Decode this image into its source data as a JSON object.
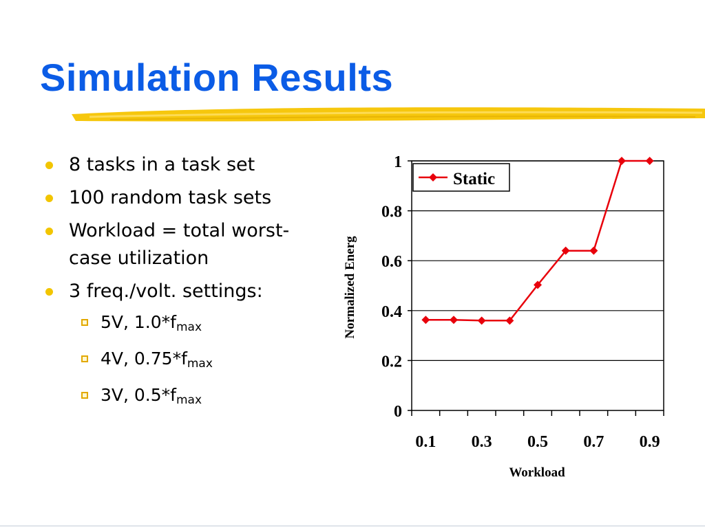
{
  "slide": {
    "title": "Simulation Results",
    "bullets": [
      {
        "text": "8 tasks in a task set"
      },
      {
        "text": "100 random task sets"
      },
      {
        "text": "Workload = total worst-case utilization",
        "line1": "Workload = total worst-",
        "line2": "case utilization"
      },
      {
        "text": "3 freq./volt. settings:"
      }
    ],
    "sub_bullets": [
      {
        "main": "5V, 1.0*f",
        "subscript": "max"
      },
      {
        "main": "4V, 0.75*f",
        "subscript": "max"
      },
      {
        "main": "3V, 0.5*f",
        "subscript": "max"
      }
    ],
    "colors": {
      "title": "#0b5ce6",
      "bullet": "#f2c500",
      "underline": "#f5c400",
      "series": "#e8000b"
    }
  },
  "chart_data": {
    "type": "line",
    "xlabel": "Workload",
    "ylabel": "Normalized Energ",
    "x_ticks": [
      "0.1",
      "0.3",
      "0.5",
      "0.7",
      "0.9"
    ],
    "y_ticks": [
      "0",
      "0.2",
      "0.4",
      "0.6",
      "0.8",
      "1"
    ],
    "ylim": [
      0,
      1
    ],
    "grid": "horizontal",
    "legend": "top-left",
    "series": [
      {
        "name": "Static",
        "color": "#e8000b",
        "x": [
          0.1,
          0.2,
          0.3,
          0.4,
          0.5,
          0.6,
          0.7,
          0.8,
          0.9
        ],
        "values": [
          0.363,
          0.363,
          0.36,
          0.36,
          0.503,
          0.64,
          0.64,
          1.0,
          1.0
        ]
      }
    ]
  }
}
